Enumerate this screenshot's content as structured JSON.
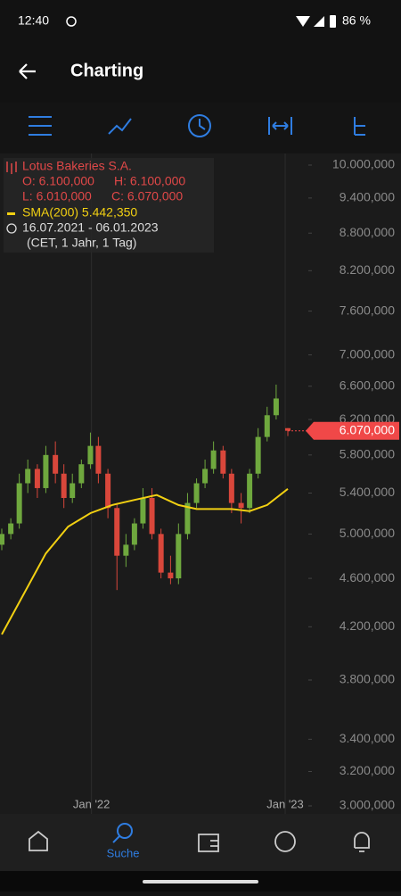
{
  "status_bar": {
    "time": "12:40",
    "battery": "86 %"
  },
  "header": {
    "title": "Charting"
  },
  "nav": {
    "active_label": "Suche"
  },
  "chart_data": {
    "type": "candlestick",
    "legend": {
      "name": "Lotus Bakeries S.A.",
      "open": "O: 6.100,000",
      "high": "H: 6.100,000",
      "low": "L: 6.010,000",
      "close": "C: 6.070,000",
      "date_range": "16.07.2021 - 06.01.2023",
      "period": "(CET, 1 Jahr, 1 Tag)"
    },
    "x": [
      "2021-07-16",
      "2021-08-02",
      "2021-08-18",
      "2021-09-03",
      "2021-09-21",
      "2021-10-07",
      "2021-10-25",
      "2021-11-10",
      "2021-11-26",
      "2021-12-13",
      "2021-12-30",
      "2022-01-14",
      "2022-02-01",
      "2022-02-18",
      "2022-03-07",
      "2022-03-23",
      "2022-04-08",
      "2022-04-25",
      "2022-05-12",
      "2022-05-30",
      "2022-06-14",
      "2022-07-01",
      "2022-07-18",
      "2022-08-03",
      "2022-08-19",
      "2022-09-06",
      "2022-09-22",
      "2022-10-10",
      "2022-10-26",
      "2022-11-11",
      "2022-11-28",
      "2022-12-15",
      "2023-01-06"
    ],
    "open": [
      4900,
      5000,
      5100,
      5500,
      5650,
      5450,
      5800,
      5600,
      5350,
      5500,
      5700,
      5900,
      5600,
      5250,
      4800,
      4900,
      5100,
      5350,
      5000,
      4650,
      4600,
      5000,
      5300,
      5500,
      5650,
      5850,
      5600,
      5300,
      5250,
      5600,
      6000,
      6250,
      6100
    ],
    "high": [
      5050,
      5150,
      5600,
      5750,
      5700,
      5900,
      5950,
      5700,
      5600,
      5750,
      6050,
      6000,
      5650,
      5300,
      5000,
      5150,
      5450,
      5450,
      5050,
      4800,
      5100,
      5400,
      5550,
      5750,
      5950,
      5900,
      5650,
      5400,
      5650,
      6100,
      6350,
      6620,
      6100
    ],
    "low": [
      4850,
      4950,
      5050,
      5400,
      5350,
      5400,
      5500,
      5250,
      5300,
      5450,
      5650,
      5500,
      5150,
      4500,
      4700,
      4850,
      5050,
      4950,
      4600,
      4550,
      4550,
      4950,
      5250,
      5450,
      5600,
      5550,
      5200,
      5100,
      5200,
      5550,
      5950,
      6200,
      6010
    ],
    "close": [
      5000,
      5100,
      5500,
      5650,
      5450,
      5800,
      5600,
      5350,
      5500,
      5700,
      5900,
      5600,
      5250,
      4800,
      4900,
      5100,
      5350,
      5000,
      4650,
      4600,
      5000,
      5300,
      5500,
      5650,
      5850,
      5600,
      5300,
      5250,
      5600,
      6000,
      6250,
      6450,
      6070
    ],
    "up_color": "#6fa83e",
    "down_color": "#d9473b",
    "sma": {
      "label": "SMA(200) 5.442,350",
      "color": "#f2d012",
      "x": [
        "2021-07-16",
        "2021-10-07",
        "2021-11-18",
        "2021-12-30",
        "2022-02-09",
        "2022-03-23",
        "2022-05-04",
        "2022-06-14",
        "2022-07-18",
        "2022-08-19",
        "2022-09-22",
        "2022-10-26",
        "2022-11-28",
        "2023-01-06"
      ],
      "values": [
        4140,
        4820,
        5070,
        5200,
        5280,
        5330,
        5380,
        5280,
        5240,
        5240,
        5240,
        5220,
        5280,
        5442.35
      ]
    },
    "current_price": {
      "value": 6070,
      "label": "6.070,000"
    },
    "current_price_color": "#f04848",
    "log_scale": true,
    "grid": true,
    "ylim": [
      2955,
      10220
    ],
    "yticks": [
      {
        "value": 10000,
        "label": "10.000,000"
      },
      {
        "value": 9400,
        "label": "9.400,000"
      },
      {
        "value": 8800,
        "label": "8.800,000"
      },
      {
        "value": 8200,
        "label": "8.200,000"
      },
      {
        "value": 7600,
        "label": "7.600,000"
      },
      {
        "value": 7000,
        "label": "7.000,000"
      },
      {
        "value": 6600,
        "label": "6.600,000"
      },
      {
        "value": 6200,
        "label": "6.200,000"
      },
      {
        "value": 5800,
        "label": "5.800,000"
      },
      {
        "value": 5400,
        "label": "5.400,000"
      },
      {
        "value": 5000,
        "label": "5.000,000"
      },
      {
        "value": 4600,
        "label": "4.600,000"
      },
      {
        "value": 4200,
        "label": "4.200,000"
      },
      {
        "value": 3800,
        "label": "3.800,000"
      },
      {
        "value": 3400,
        "label": "3.400,000"
      },
      {
        "value": 3200,
        "label": "3.200,000"
      },
      {
        "value": 3000,
        "label": "3.000,000"
      }
    ],
    "xlim": [
      "2021-07-16",
      "2023-01-06"
    ],
    "xticks": [
      {
        "value": "2022-01-01",
        "label": "Jan '22"
      },
      {
        "value": "2023-01-01",
        "label": "Jan '23"
      }
    ]
  }
}
